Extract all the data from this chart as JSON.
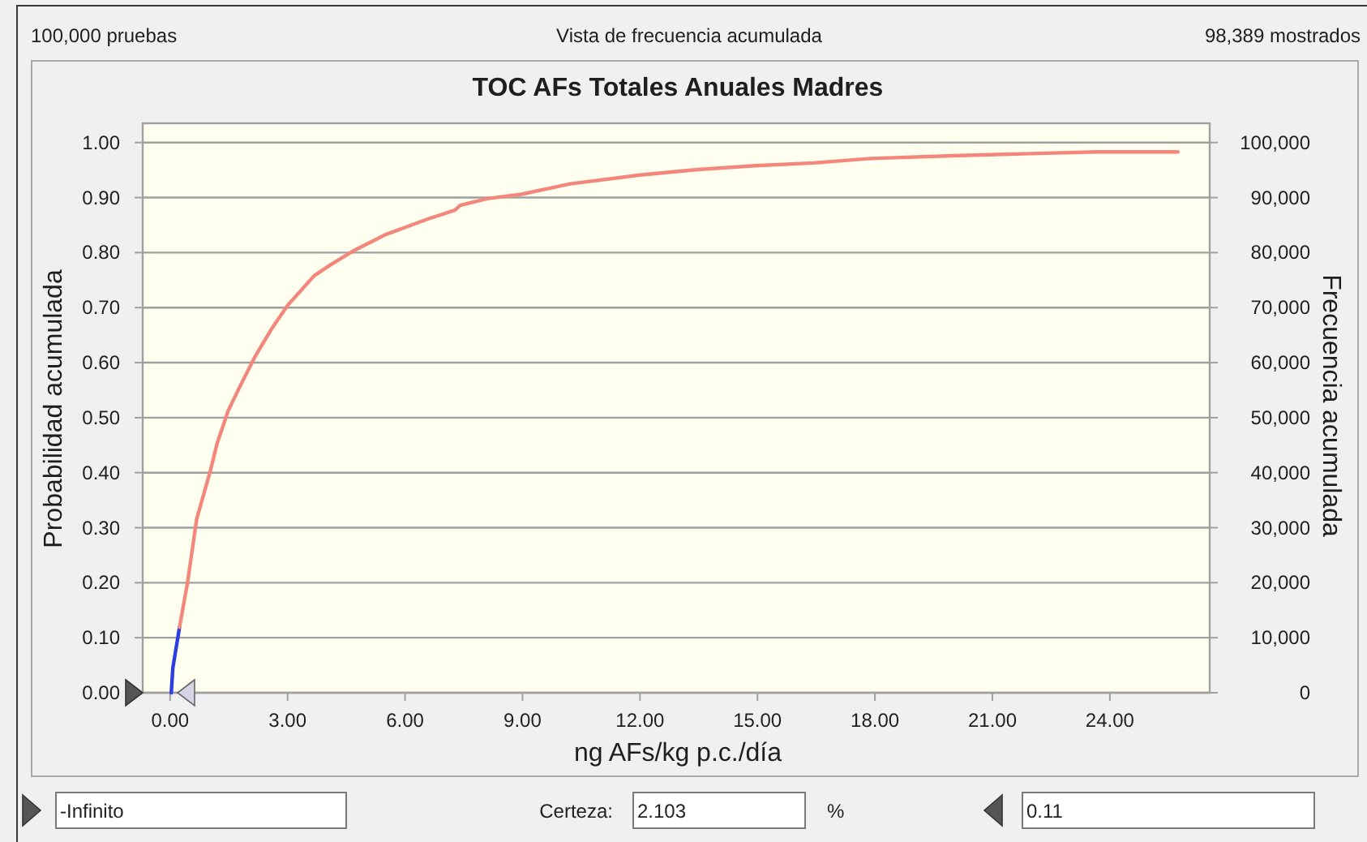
{
  "chart_data": {
    "type": "line",
    "title": "TOC AFs Totales Anuales Madres",
    "xlabel": "ng AFs/kg p.c./día",
    "ylabel": "Probabilidad acumulada",
    "y2label": "Frecuencia acumulada",
    "annotations": [
      "100,000 pruebas",
      "Vista de frecuencia acumulada",
      "98,389 mostrados",
      "-Infinito",
      "Certeza:",
      "2.103",
      "%",
      "0.11"
    ],
    "xlim": [
      -0.7,
      26.55
    ],
    "xticks": [
      {
        "value": 0,
        "label": "0.00"
      },
      {
        "value": 3,
        "label": "3.00"
      },
      {
        "value": 6,
        "label": "6.00"
      },
      {
        "value": 9,
        "label": "9.00"
      },
      {
        "value": 12,
        "label": "12.00"
      },
      {
        "value": 15,
        "label": "15.00"
      },
      {
        "value": 18,
        "label": "18.00"
      },
      {
        "value": 21,
        "label": "21.00"
      },
      {
        "value": 24,
        "label": "24.00"
      }
    ],
    "ylim": [
      0,
      1.035
    ],
    "yticks": [
      {
        "value": 0,
        "label": "0.00"
      },
      {
        "value": 0.1,
        "label": "0.10"
      },
      {
        "value": 0.2,
        "label": "0.20"
      },
      {
        "value": 0.3,
        "label": "0.30"
      },
      {
        "value": 0.4,
        "label": "0.40"
      },
      {
        "value": 0.5,
        "label": "0.50"
      },
      {
        "value": 0.6,
        "label": "0.60"
      },
      {
        "value": 0.7,
        "label": "0.70"
      },
      {
        "value": 0.8,
        "label": "0.80"
      },
      {
        "value": 0.9,
        "label": "0.90"
      },
      {
        "value": 1,
        "label": "1.00"
      }
    ],
    "y2lim": [
      0,
      103500
    ],
    "y2ticks": [
      0,
      {
        "value": 10000,
        "label": "10,000"
      },
      {
        "value": 20000,
        "label": "20,000"
      },
      {
        "value": 30000,
        "label": "30,000"
      },
      {
        "value": 40000,
        "label": "40,000"
      },
      {
        "value": 50000,
        "label": "50,000"
      },
      {
        "value": 60000,
        "label": "60,000"
      },
      {
        "value": 70000,
        "label": "70,000"
      },
      {
        "value": 80000,
        "label": "80,000"
      },
      {
        "value": 90000,
        "label": "90,000"
      },
      {
        "value": 100000,
        "label": "100,000"
      }
    ],
    "grid": "y",
    "series": [
      {
        "color": "#2b3fe0",
        "x": [
          0.03,
          0.07,
          0.24
        ],
        "values": [
          0,
          0.045,
          0.119
        ]
      },
      {
        "color": "#f4877c",
        "x": [
          0.24,
          0.44,
          0.68,
          1.03,
          1.2,
          1.48,
          1.75,
          2.17,
          2.58,
          3.0,
          3.68,
          4.1,
          4.65,
          5.48,
          6.58,
          7.27,
          7.41,
          8.1,
          8.97,
          10.22,
          12.0,
          13.48,
          14.95,
          16.43,
          17.9,
          19.97,
          21.46,
          23.67,
          25.74
        ],
        "values": [
          0.119,
          0.198,
          0.316,
          0.404,
          0.453,
          0.512,
          0.552,
          0.611,
          0.66,
          0.704,
          0.758,
          0.778,
          0.802,
          0.832,
          0.861,
          0.877,
          0.886,
          0.898,
          0.906,
          0.925,
          0.941,
          0.951,
          0.958,
          0.963,
          0.971,
          0.976,
          0.979,
          0.983,
          0.983
        ]
      }
    ]
  }
}
